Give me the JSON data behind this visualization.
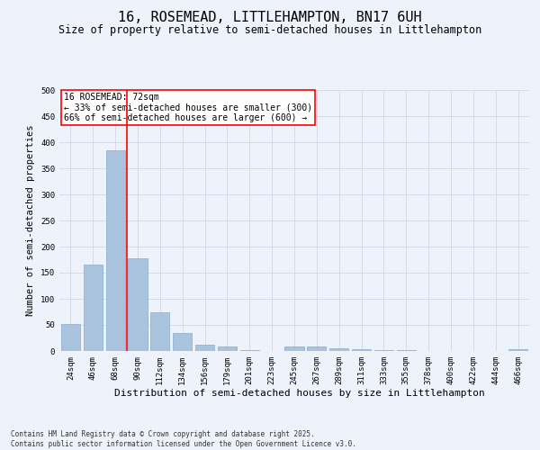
{
  "title": "16, ROSEMEAD, LITTLEHAMPTON, BN17 6UH",
  "subtitle": "Size of property relative to semi-detached houses in Littlehampton",
  "xlabel": "Distribution of semi-detached houses by size in Littlehampton",
  "ylabel": "Number of semi-detached properties",
  "categories": [
    "24sqm",
    "46sqm",
    "68sqm",
    "90sqm",
    "112sqm",
    "134sqm",
    "156sqm",
    "179sqm",
    "201sqm",
    "223sqm",
    "245sqm",
    "267sqm",
    "289sqm",
    "311sqm",
    "333sqm",
    "355sqm",
    "378sqm",
    "400sqm",
    "422sqm",
    "444sqm",
    "466sqm"
  ],
  "values": [
    51,
    165,
    385,
    178,
    75,
    34,
    12,
    8,
    1,
    0,
    8,
    8,
    5,
    4,
    2,
    2,
    0,
    0,
    0,
    0,
    3
  ],
  "bar_color": "#aac4df",
  "bar_edge_color": "#85acd0",
  "grid_color": "#d0d8e8",
  "background_color": "#eef2fa",
  "red_line_x": 2.5,
  "annotation_title": "16 ROSEMEAD: 72sqm",
  "annotation_line1": "← 33% of semi-detached houses are smaller (300)",
  "annotation_line2": "66% of semi-detached houses are larger (600) →",
  "footer": "Contains HM Land Registry data © Crown copyright and database right 2025.\nContains public sector information licensed under the Open Government Licence v3.0.",
  "ylim": [
    0,
    500
  ],
  "yticks": [
    0,
    50,
    100,
    150,
    200,
    250,
    300,
    350,
    400,
    450,
    500
  ],
  "title_fontsize": 11,
  "subtitle_fontsize": 8.5,
  "xlabel_fontsize": 8,
  "ylabel_fontsize": 7.5,
  "tick_fontsize": 6.5,
  "footer_fontsize": 5.5,
  "ann_fontsize": 7
}
